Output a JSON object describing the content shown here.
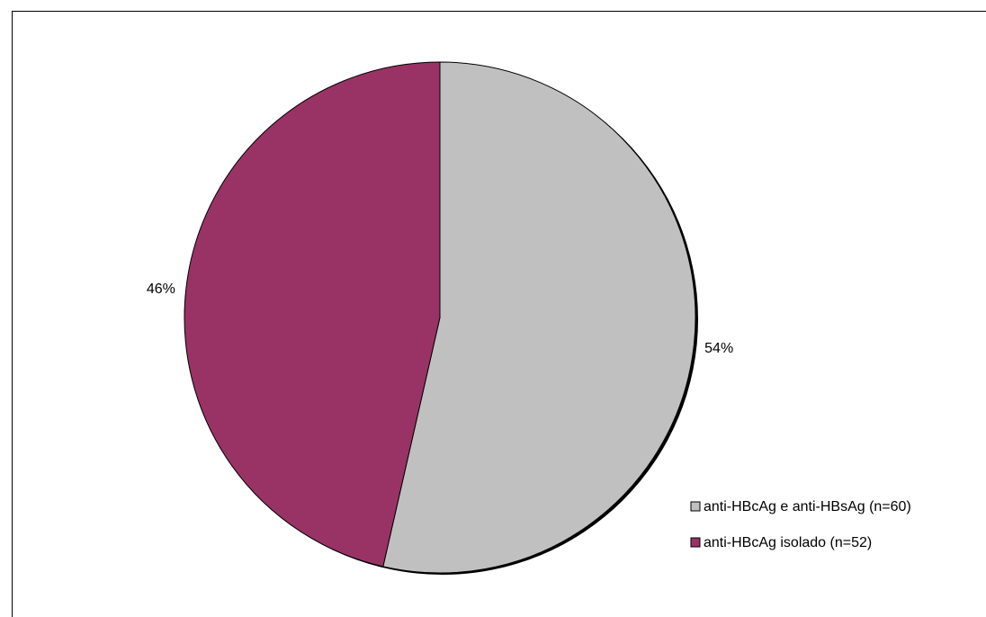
{
  "chart_data": {
    "type": "pie",
    "title": "",
    "slices": [
      {
        "label": "anti-HBcAg e anti-HBsAg (n=60)",
        "value": 60,
        "percent_label": "54%",
        "color": "#c0c0c0"
      },
      {
        "label": "anti-HBcAg isolado (n=52)",
        "value": 52,
        "percent_label": "46%",
        "color": "#993366"
      }
    ],
    "start_angle_deg": 0,
    "direction": "clockwise",
    "legend_position": "bottom-right"
  }
}
